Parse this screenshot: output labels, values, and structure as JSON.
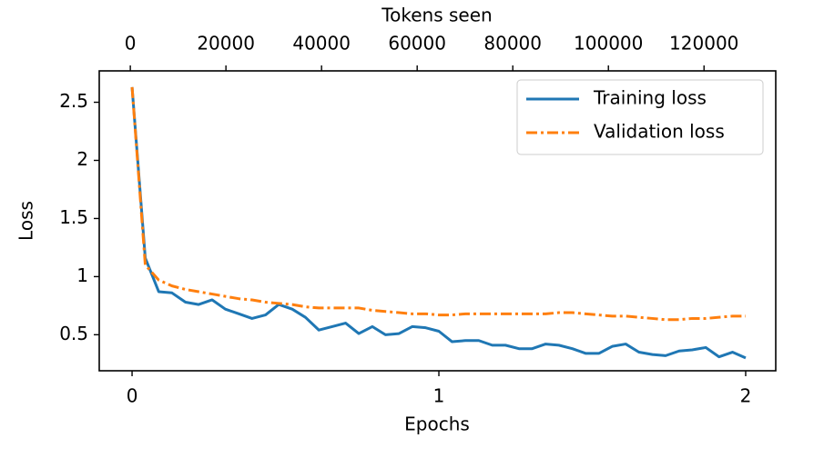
{
  "chart_data": {
    "type": "line",
    "xlabel": "Epochs",
    "ylabel": "Loss",
    "x2label": "Tokens seen",
    "x": [
      0,
      0.043,
      0.087,
      0.13,
      0.174,
      0.217,
      0.261,
      0.304,
      0.348,
      0.391,
      0.435,
      0.478,
      0.522,
      0.565,
      0.609,
      0.652,
      0.696,
      0.739,
      0.783,
      0.826,
      0.87,
      0.913,
      0.957,
      1,
      1.043,
      1.087,
      1.13,
      1.174,
      1.217,
      1.261,
      1.304,
      1.348,
      1.391,
      1.435,
      1.478,
      1.522,
      1.565,
      1.609,
      1.652,
      1.696,
      1.739,
      1.783,
      1.826,
      1.87,
      1.913,
      1.957,
      2
    ],
    "series": [
      {
        "name": "Training loss",
        "color": "#1f77b4",
        "linestyle": "solid",
        "values": [
          2.63,
          1.16,
          0.87,
          0.86,
          0.78,
          0.76,
          0.8,
          0.72,
          0.68,
          0.64,
          0.67,
          0.76,
          0.72,
          0.65,
          0.54,
          0.57,
          0.6,
          0.51,
          0.57,
          0.5,
          0.51,
          0.57,
          0.56,
          0.53,
          0.44,
          0.45,
          0.45,
          0.41,
          0.41,
          0.38,
          0.38,
          0.42,
          0.41,
          0.38,
          0.34,
          0.34,
          0.4,
          0.42,
          0.35,
          0.33,
          0.32,
          0.36,
          0.37,
          0.39,
          0.31,
          0.35,
          0.3
        ]
      },
      {
        "name": "Validation loss",
        "color": "#ff7f0e",
        "linestyle": "dashdot",
        "values": [
          2.63,
          1.1,
          0.97,
          0.92,
          0.89,
          0.87,
          0.85,
          0.83,
          0.81,
          0.8,
          0.78,
          0.77,
          0.76,
          0.74,
          0.73,
          0.73,
          0.73,
          0.73,
          0.71,
          0.7,
          0.69,
          0.68,
          0.68,
          0.67,
          0.67,
          0.68,
          0.68,
          0.68,
          0.68,
          0.68,
          0.68,
          0.68,
          0.69,
          0.69,
          0.68,
          0.67,
          0.66,
          0.66,
          0.65,
          0.64,
          0.63,
          0.63,
          0.64,
          0.64,
          0.65,
          0.66,
          0.66
        ]
      }
    ],
    "xlim": [
      -0.107,
      2.098
    ],
    "xticks": [
      0,
      1,
      2
    ],
    "x2lim": [
      -6500,
      135000
    ],
    "x2ticks": [
      0,
      20000,
      40000,
      60000,
      80000,
      100000,
      120000
    ],
    "ylim": [
      0.19,
      2.77
    ],
    "yticks": [
      0.5,
      1.0,
      1.5,
      2.0,
      2.5
    ],
    "legend": "upper right",
    "grid": false
  }
}
